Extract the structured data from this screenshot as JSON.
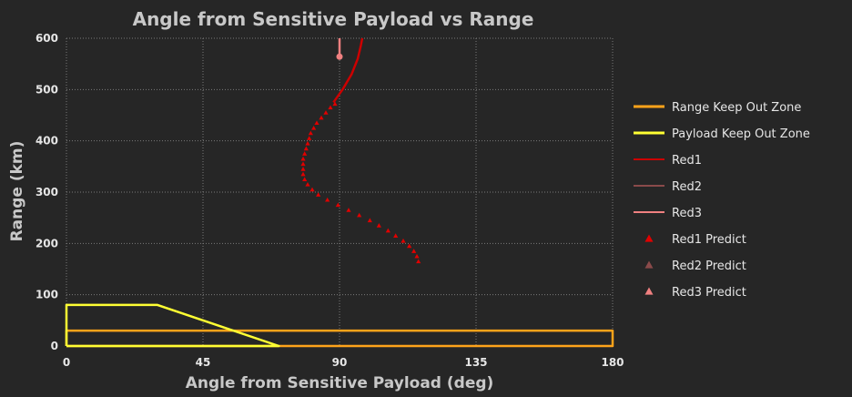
{
  "chart_data": {
    "type": "line",
    "title": "Angle from Sensitive Payload vs Range",
    "xlabel": "Angle from Sensitive Payload (deg)",
    "ylabel": "Range (km)",
    "xlim": [
      0,
      180
    ],
    "ylim": [
      0,
      600
    ],
    "x_ticks": [
      "0",
      "45",
      "90",
      "135",
      "180"
    ],
    "y_ticks": [
      "0",
      "100",
      "200",
      "300",
      "400",
      "500",
      "600"
    ],
    "grid": true,
    "legend_position": "right",
    "series": [
      {
        "name": "Range Keep Out Zone",
        "kind": "line",
        "color": "#ffa31a",
        "points": [
          [
            0,
            0
          ],
          [
            180,
            0
          ],
          [
            180,
            30
          ],
          [
            0,
            30
          ],
          [
            0,
            0
          ]
        ]
      },
      {
        "name": "Payload Keep Out Zone",
        "kind": "line",
        "color": "#ffff33",
        "points": [
          [
            0,
            0
          ],
          [
            0,
            80
          ],
          [
            30,
            80
          ],
          [
            70,
            0
          ],
          [
            0,
            0
          ]
        ]
      },
      {
        "name": "Red1",
        "kind": "line",
        "color": "#cc0000",
        "points": [
          [
            88,
            475
          ],
          [
            91,
            500
          ],
          [
            94,
            530
          ],
          [
            96,
            560
          ],
          [
            97,
            585
          ],
          [
            97.5,
            600
          ]
        ]
      },
      {
        "name": "Red2",
        "kind": "line",
        "color": "#8a4a4a",
        "points": []
      },
      {
        "name": "Red3",
        "kind": "line",
        "color": "#f08080",
        "points": [
          [
            90,
            564
          ],
          [
            90,
            600
          ]
        ],
        "end_marker": [
          90,
          564
        ]
      },
      {
        "name": "Red1 Predict",
        "kind": "marker",
        "color": "#e00000",
        "points": [
          [
            116,
            165
          ],
          [
            115.5,
            175
          ],
          [
            114.5,
            185
          ],
          [
            113,
            195
          ],
          [
            111,
            205
          ],
          [
            108.5,
            215
          ],
          [
            106,
            225
          ],
          [
            103,
            235
          ],
          [
            100,
            245
          ],
          [
            96.5,
            255
          ],
          [
            93,
            265
          ],
          [
            89.5,
            275
          ],
          [
            86,
            285
          ],
          [
            83,
            295
          ],
          [
            81,
            305
          ],
          [
            79.5,
            315
          ],
          [
            78.5,
            325
          ],
          [
            78,
            335
          ],
          [
            78,
            345
          ],
          [
            78,
            355
          ],
          [
            78,
            365
          ],
          [
            78.5,
            375
          ],
          [
            79,
            385
          ],
          [
            79.5,
            395
          ],
          [
            80,
            405
          ],
          [
            80.5,
            415
          ],
          [
            81.5,
            425
          ],
          [
            82.5,
            435
          ],
          [
            84,
            445
          ],
          [
            85.5,
            455
          ],
          [
            87,
            465
          ],
          [
            88.5,
            472
          ]
        ]
      },
      {
        "name": "Red2 Predict",
        "kind": "marker",
        "color": "#8a4a4a",
        "points": []
      },
      {
        "name": "Red3 Predict",
        "kind": "marker",
        "color": "#f08080",
        "points": []
      }
    ]
  }
}
